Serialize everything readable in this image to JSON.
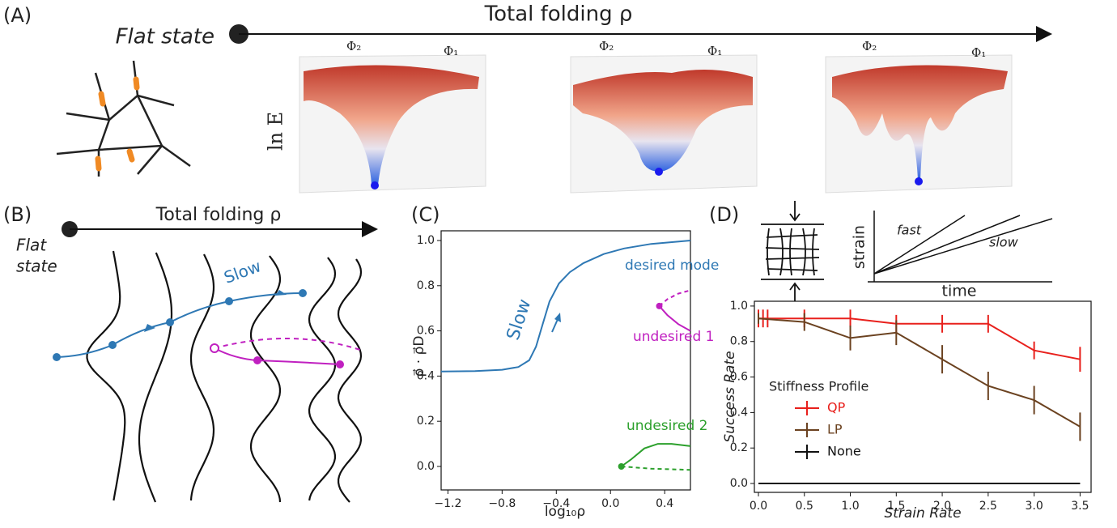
{
  "panel_a": {
    "label": "(A)",
    "arrow_label": "Total folding ρ",
    "start_label": "Flat state",
    "surfaces": [
      {
        "phi2": "Φ₂",
        "phi1": "Φ₁"
      },
      {
        "phi2": "Φ₂",
        "phi1": "Φ₁"
      },
      {
        "phi2": "Φ₂",
        "phi1": "Φ₁"
      }
    ],
    "z_label": "ln E"
  },
  "panel_b": {
    "label": "(B)",
    "arrow_label": "Total folding ρ",
    "start_label_1": "Flat",
    "start_label_2": "state",
    "path_label": "Slow"
  },
  "panel_c": {
    "label": "(C)",
    "annotation": "Slow"
  },
  "panel_d": {
    "label": "(D)",
    "inset_y_label": "strain",
    "inset_x_label": "time",
    "inset_fast": "fast",
    "inset_slow": "slow"
  },
  "chart_data": [
    {
      "type": "line",
      "x_label": "log₁₀ρ",
      "y_label": "ρ⃗ · ρ⃗D",
      "xlim": [
        -1.25,
        0.59
      ],
      "ylim": [
        -0.104,
        1.043
      ],
      "xticks": [
        {
          "value": -1.2,
          "label": "−1.2"
        },
        {
          "value": -0.8,
          "label": "−0.8"
        },
        {
          "value": -0.4,
          "label": "−0.4"
        },
        {
          "value": 0,
          "label": "0.0"
        },
        0.4
      ],
      "yticks": [
        {
          "value": 0,
          "label": "0.0"
        },
        0.2,
        0.4,
        0.6,
        0.8,
        {
          "value": 1,
          "label": "1.0"
        }
      ],
      "series": [
        {
          "name": "desired mode",
          "color": "#2e78b4",
          "x": [
            -1.25,
            -1.0,
            -0.8,
            -0.68,
            -0.6,
            -0.55,
            -0.5,
            -0.45,
            -0.38,
            -0.3,
            -0.2,
            -0.05,
            0.1,
            0.3,
            0.59
          ],
          "values": [
            0.42,
            0.422,
            0.428,
            0.44,
            0.47,
            0.53,
            0.63,
            0.73,
            0.81,
            0.86,
            0.9,
            0.94,
            0.965,
            0.985,
            1.0
          ]
        },
        {
          "name": "undesired 1",
          "color": "#c020c0",
          "x": [
            0.36,
            0.42,
            0.5,
            0.59
          ],
          "values": [
            0.71,
            0.67,
            0.63,
            0.6
          ]
        },
        {
          "color": "#c020c0",
          "dashed": true,
          "x": [
            0.36,
            0.42,
            0.5,
            0.59
          ],
          "values": [
            0.71,
            0.74,
            0.765,
            0.78
          ]
        },
        {
          "name": "undesired 2",
          "color": "#2ca02c",
          "x": [
            0.08,
            0.15,
            0.25,
            0.35,
            0.45,
            0.59
          ],
          "values": [
            0,
            0.03,
            0.08,
            0.1,
            0.1,
            0.09
          ]
        },
        {
          "color": "#2ca02c",
          "dashed": true,
          "x": [
            0.08,
            0.3,
            0.59
          ],
          "values": [
            0,
            -0.01,
            -0.015
          ]
        }
      ]
    },
    {
      "type": "errorbar",
      "x_label": "Strain Rate",
      "y_label": "Success Rate",
      "legend_title": "Stiffness Profile",
      "xlim": [
        -0.044,
        3.62
      ],
      "ylim": [
        -0.05,
        1.027
      ],
      "xticks": [
        {
          "value": 0,
          "label": "0.0"
        },
        0.5,
        {
          "value": 1,
          "label": "1.0"
        },
        1.5,
        {
          "value": 2,
          "label": "2.0"
        },
        2.5,
        {
          "value": 3,
          "label": "3.0"
        },
        3.5
      ],
      "yticks": [
        {
          "value": 0,
          "label": "0.0"
        },
        0.2,
        0.4,
        0.6,
        0.8,
        {
          "value": 1,
          "label": "1.0"
        }
      ],
      "series": [
        {
          "name": "QP",
          "color": "#e8201c",
          "x": [
            0,
            0.05,
            0.1,
            0.5,
            1,
            1.5,
            2,
            2.5,
            3,
            3.5
          ],
          "values": [
            0.93,
            0.93,
            0.93,
            0.93,
            0.93,
            0.9,
            0.9,
            0.9,
            0.75,
            0.7
          ],
          "errors": [
            0.05,
            0.05,
            0.05,
            0.05,
            0.05,
            0.05,
            0.05,
            0.05,
            0.05,
            0.07
          ]
        },
        {
          "name": "LP",
          "color": "#6b4220",
          "x": [
            0,
            0.5,
            1,
            1.5,
            2,
            2.5,
            3,
            3.5
          ],
          "values": [
            0.93,
            0.91,
            0.82,
            0.85,
            0.7,
            0.55,
            0.47,
            0.32
          ],
          "errors": [
            0.03,
            0.05,
            0.07,
            0.07,
            0.08,
            0.08,
            0.08,
            0.08
          ]
        },
        {
          "name": "None",
          "color": "#111111",
          "x": [
            0,
            3.5
          ],
          "values": [
            0,
            0
          ],
          "errors": [
            0,
            0
          ]
        }
      ]
    }
  ]
}
